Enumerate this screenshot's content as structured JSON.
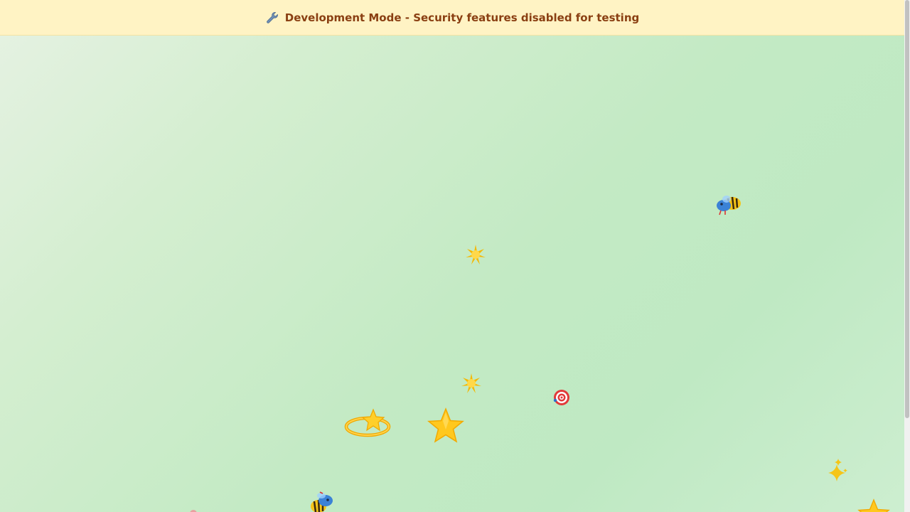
{
  "banner": {
    "icon": "wrench-icon",
    "text": "Development Mode - Security features disabled for testing"
  },
  "colors": {
    "banner_bg": "#fff3c4",
    "banner_text": "#8a3f12",
    "background_accent": "#c3eac4"
  },
  "decorations": [
    "bee-icon",
    "sparkle-burst-icon",
    "sparkle-burst-icon",
    "target-icon",
    "dizzy-star-icon",
    "star-icon",
    "sparkles-icon",
    "bee-icon",
    "star-icon"
  ]
}
